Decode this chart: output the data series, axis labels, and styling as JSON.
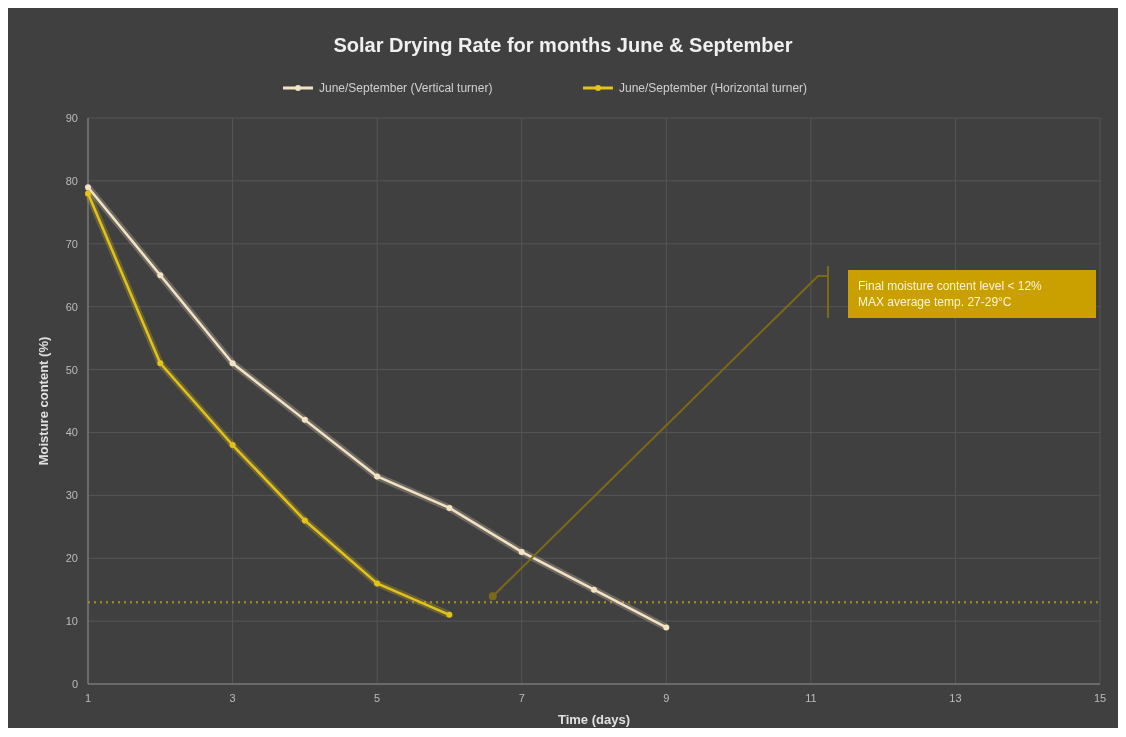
{
  "chart_data": {
    "type": "line",
    "title": "Solar Drying Rate for months June & September",
    "xlabel": "Time (days)",
    "ylabel": "Moisture content (%)",
    "x": [
      1,
      2,
      3,
      4,
      5,
      6,
      7,
      8,
      9
    ],
    "series": [
      {
        "name": "June/September (Vertical turner)",
        "color": "#f2e3c4",
        "values": [
          79,
          65,
          51,
          42,
          33,
          28,
          21,
          15,
          9
        ]
      },
      {
        "name": "June/September (Horizontal turner)",
        "color": "#e3c21a",
        "values": [
          78,
          51,
          38,
          26,
          16,
          11,
          null,
          null,
          null
        ]
      }
    ],
    "xlim": [
      1,
      15
    ],
    "xticks": [
      1,
      3,
      5,
      7,
      9,
      11,
      13,
      15
    ],
    "ylim": [
      0,
      90
    ],
    "yticks": [
      0,
      10,
      20,
      30,
      40,
      50,
      60,
      70,
      80,
      90
    ],
    "grid": true,
    "legend": "top",
    "marker": "circle",
    "line_style": "solid",
    "ref_lines": [
      {
        "axis": "y",
        "value": 13,
        "color": "#9a8520",
        "line_style": "dotted"
      }
    ],
    "annotations": [
      "Final moisture content level < 12%\nMAX average temp. 27-29°C"
    ]
  }
}
